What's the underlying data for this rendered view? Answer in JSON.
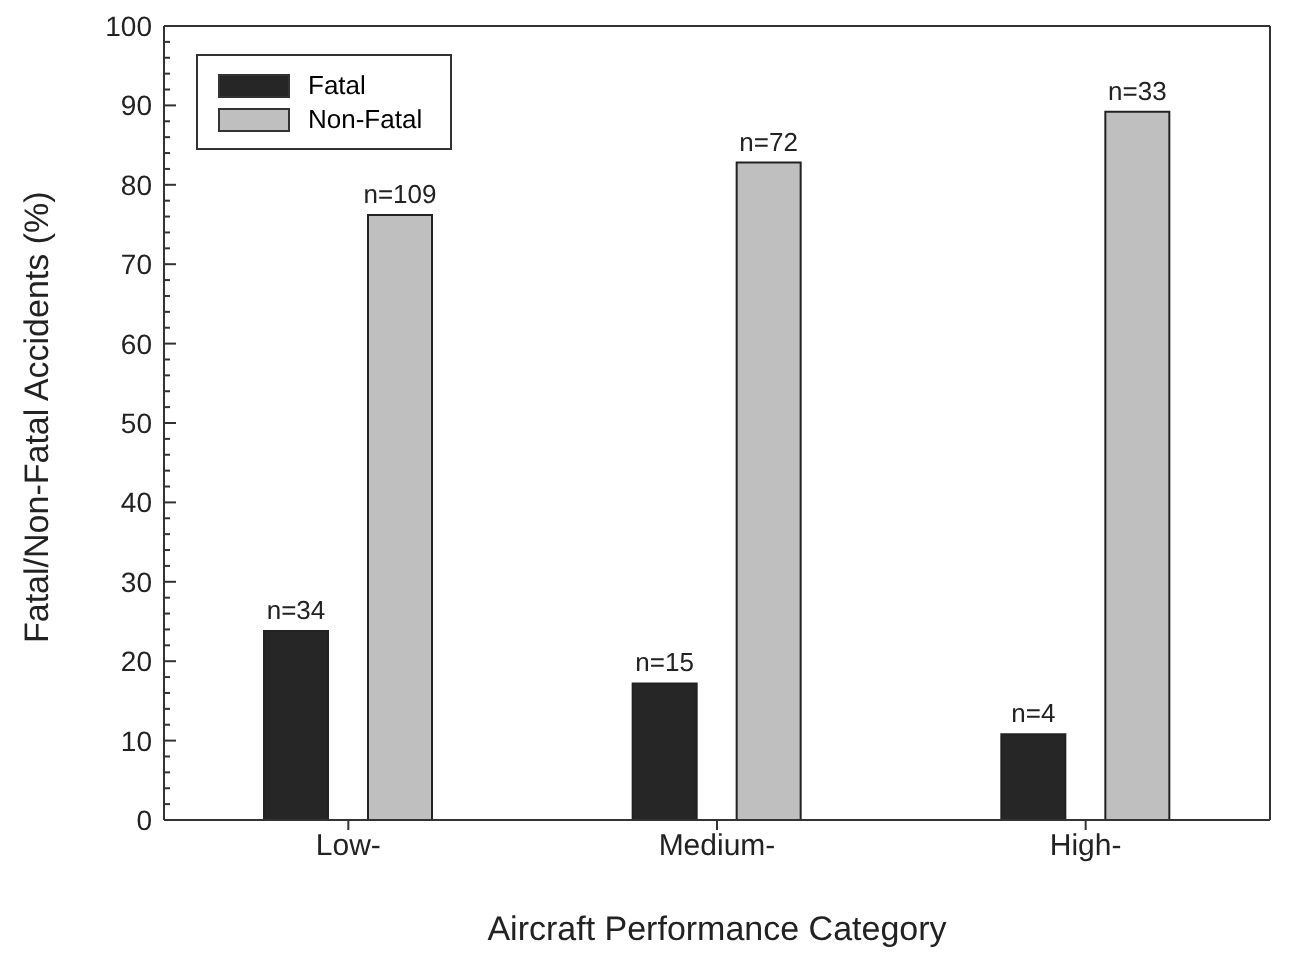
{
  "chart_data": {
    "type": "bar",
    "categories": [
      "Low-",
      "Medium-",
      "High-"
    ],
    "xlabel": "Aircraft Performance Category",
    "ylabel": "Fatal/Non-Fatal Accidents (%)",
    "series": [
      {
        "name": "Fatal",
        "color": "#262626",
        "values": [
          23.8,
          17.2,
          10.8
        ]
      },
      {
        "name": "Non-Fatal",
        "color": "#bfbfbf",
        "values": [
          76.2,
          82.8,
          89.2
        ]
      }
    ],
    "annotations": [
      "n=34",
      "n=15",
      "n=4",
      "n=109",
      "n=72",
      "n=33"
    ],
    "ylim": [
      0,
      100
    ],
    "yticks": [
      0,
      {
        "value": 2,
        "label": null
      },
      {
        "value": 4,
        "label": null
      },
      {
        "value": 6,
        "label": null
      },
      {
        "value": 8,
        "label": null
      },
      10,
      {
        "value": 12,
        "label": null
      },
      {
        "value": 14,
        "label": null
      },
      {
        "value": 16,
        "label": null
      },
      {
        "value": 18,
        "label": null
      },
      20,
      {
        "value": 22,
        "label": null
      },
      {
        "value": 24,
        "label": null
      },
      {
        "value": 26,
        "label": null
      },
      {
        "value": 28,
        "label": null
      },
      30,
      {
        "value": 32,
        "label": null
      },
      {
        "value": 34,
        "label": null
      },
      {
        "value": 36,
        "label": null
      },
      {
        "value": 38,
        "label": null
      },
      40,
      {
        "value": 42,
        "label": null
      },
      {
        "value": 44,
        "label": null
      },
      {
        "value": 46,
        "label": null
      },
      {
        "value": 48,
        "label": null
      },
      50,
      {
        "value": 52,
        "label": null
      },
      {
        "value": 54,
        "label": null
      },
      {
        "value": 56,
        "label": null
      },
      {
        "value": 58,
        "label": null
      },
      60,
      {
        "value": 62,
        "label": null
      },
      {
        "value": 64,
        "label": null
      },
      {
        "value": 66,
        "label": null
      },
      {
        "value": 68,
        "label": null
      },
      70,
      {
        "value": 72,
        "label": null
      },
      {
        "value": 74,
        "label": null
      },
      {
        "value": 76,
        "label": null
      },
      {
        "value": 78,
        "label": null
      },
      80,
      {
        "value": 82,
        "label": null
      },
      {
        "value": 84,
        "label": null
      },
      {
        "value": 86,
        "label": null
      },
      {
        "value": 88,
        "label": null
      },
      90,
      {
        "value": 92,
        "label": null
      },
      {
        "value": 94,
        "label": null
      },
      {
        "value": 96,
        "label": null
      },
      {
        "value": 98,
        "label": null
      },
      100
    ],
    "grid": false,
    "legend": "top left"
  }
}
